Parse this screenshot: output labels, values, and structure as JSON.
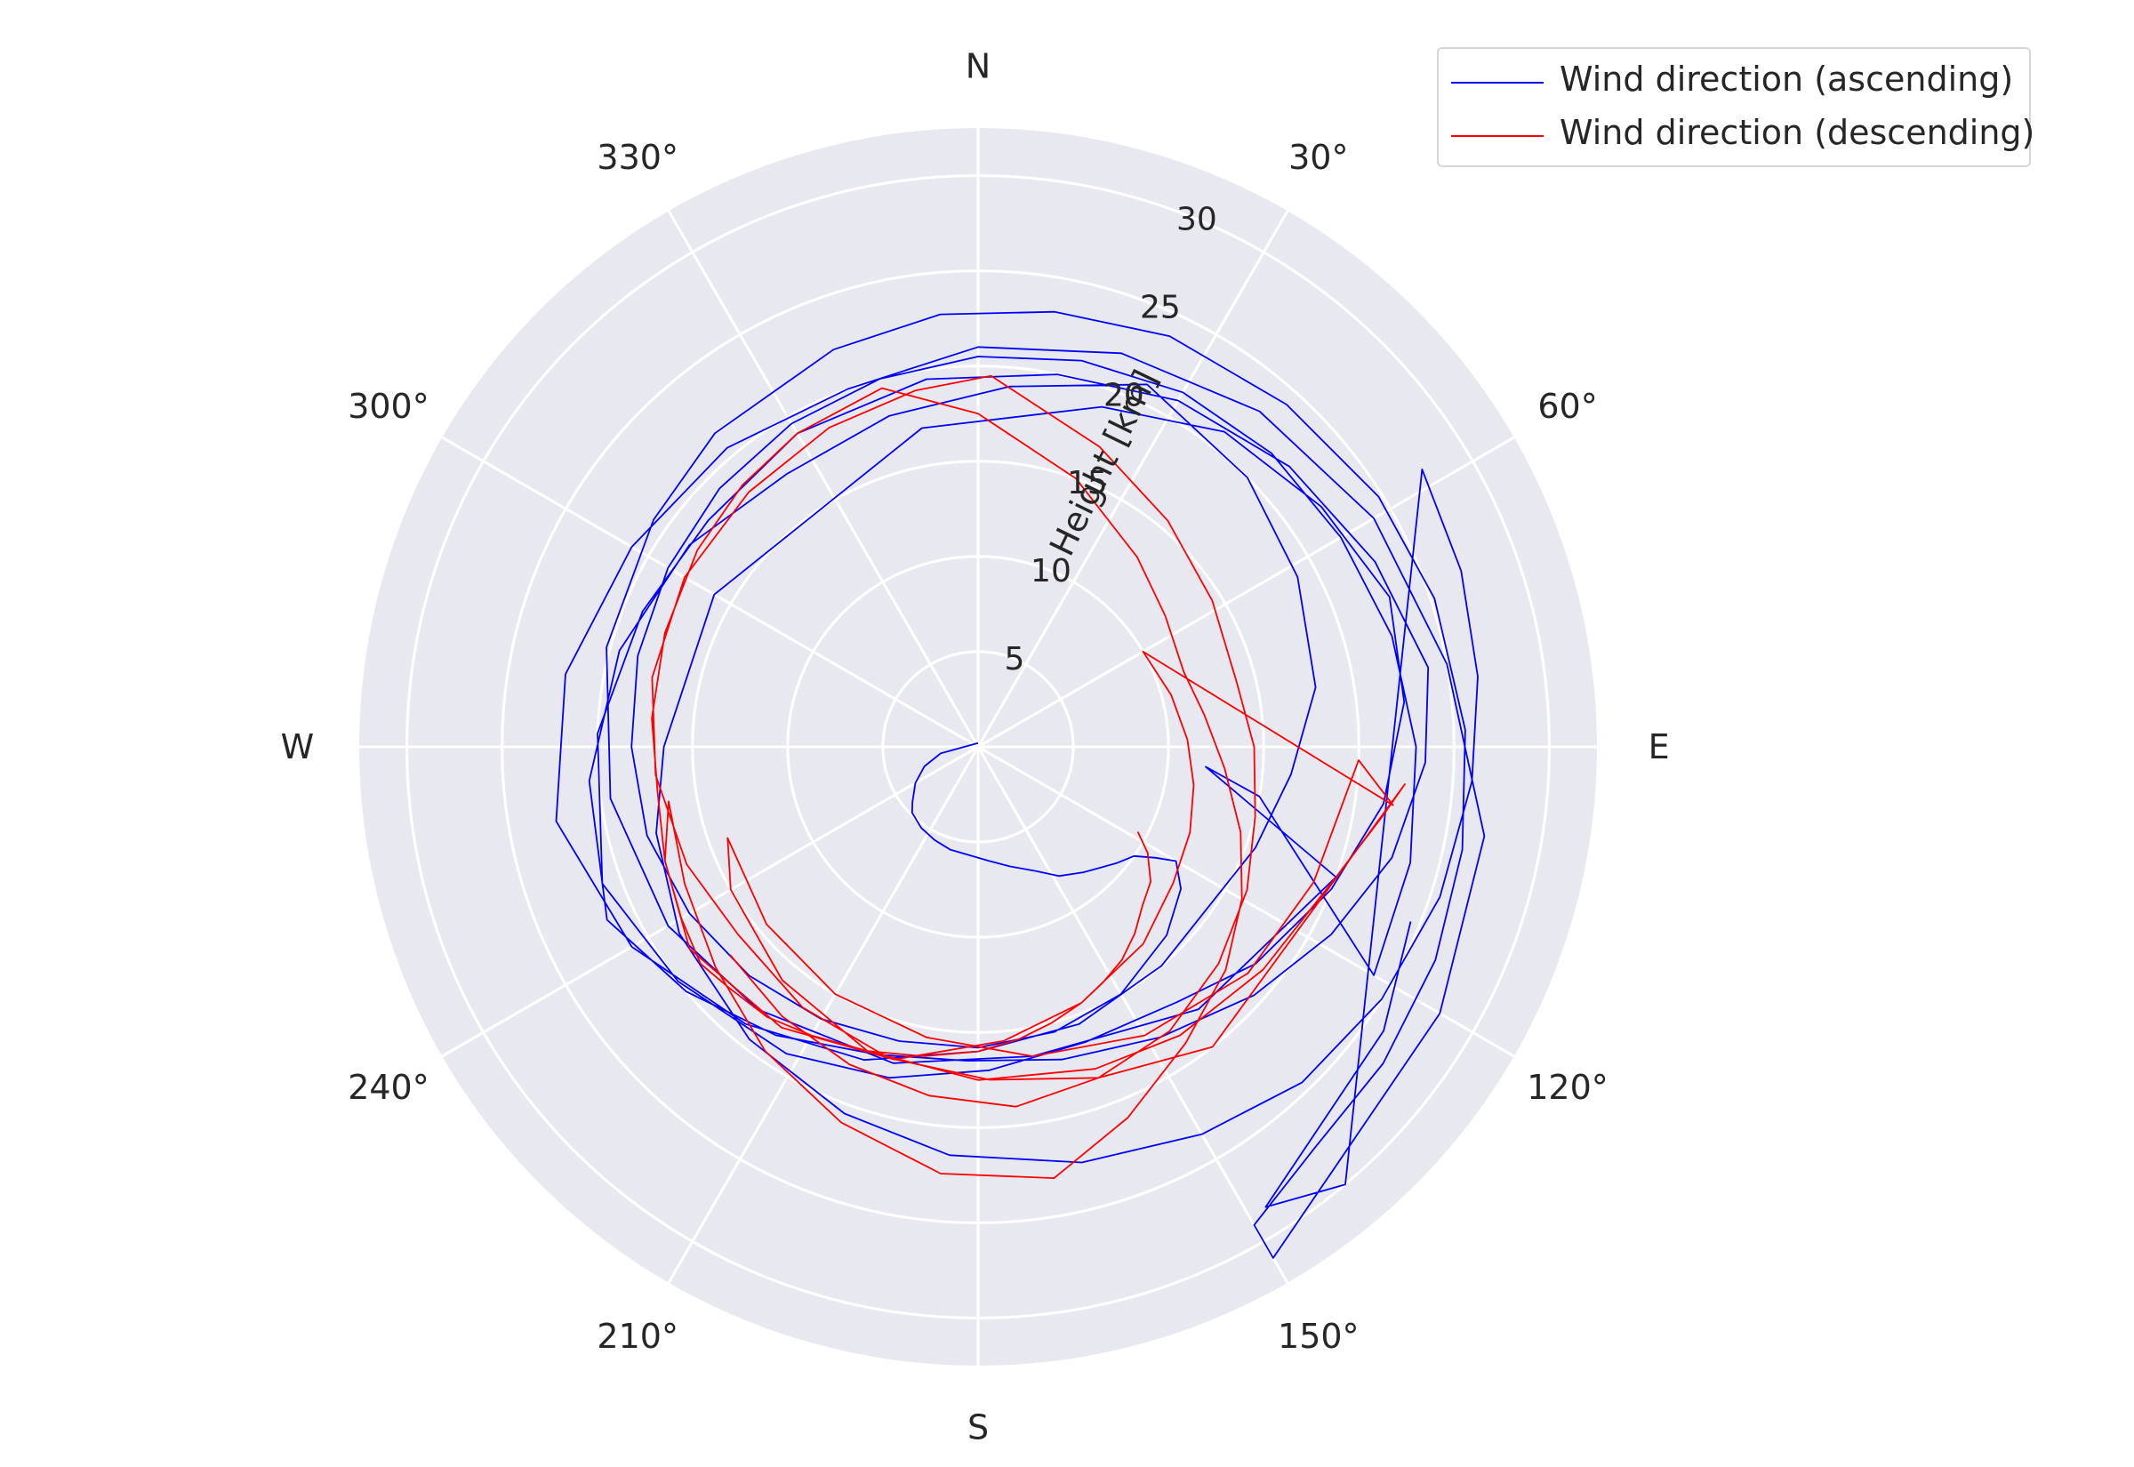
{
  "chart_data": {
    "type": "polar-line",
    "theta_zero_location": "N",
    "theta_direction": "clockwise",
    "angular_tick_labels": [
      "N",
      "30°",
      "60°",
      "E",
      "120°",
      "150°",
      "S",
      "210°",
      "240°",
      "W",
      "300°",
      "330°"
    ],
    "radial_tick_labels": [
      "5",
      "10",
      "15",
      "20",
      "25",
      "30"
    ],
    "radial_ticks": [
      5,
      10,
      15,
      20,
      25,
      30
    ],
    "rlim": [
      0,
      32.5
    ],
    "radial_label": "Height [km]",
    "grid": true,
    "legend_position": "top-right",
    "series": [
      {
        "name": "Wind direction (ascending)",
        "color": "#0000ff",
        "theta_deg": [
          0,
          260,
          250,
          240,
          230,
          225,
          215,
          205,
          195,
          185,
          175,
          165,
          155,
          148,
          140,
          135,
          130,
          125,
          122,
          120,
          125,
          135,
          150,
          165,
          180,
          195,
          210,
          225,
          240,
          255,
          270,
          285,
          300,
          315,
          330,
          345,
          0,
          15,
          30,
          45,
          60,
          75,
          90,
          105,
          120,
          100,
          95,
          110,
          140,
          170,
          195,
          220,
          240,
          262,
          285,
          305,
          320,
          340,
          355,
          10,
          25,
          42,
          58,
          72,
          88,
          102,
          115,
          128,
          140,
          150,
          150,
          120,
          100,
          80,
          60,
          40,
          20,
          0,
          340,
          320,
          300,
          280,
          260,
          240,
          220,
          200,
          180,
          160,
          140,
          110,
          95,
          80,
          62,
          45,
          25,
          5,
          345,
          325,
          305,
          285,
          265,
          245,
          230,
          215,
          198,
          182,
          165,
          148,
          132,
          118,
          105,
          92,
          80,
          65,
          48,
          30,
          12,
          352,
          330,
          310,
          292,
          272,
          250,
          232,
          212,
          195,
          178,
          160,
          142,
          128,
          112,
          98,
          84,
          70,
          55,
          38,
          20,
          350,
          300,
          270,
          255,
          238,
          218,
          200,
          184,
          166,
          150,
          136,
          122,
          108,
          94,
          82,
          70,
          58,
          140,
          148,
          125,
          112,
          100
        ],
        "height_km": [
          0.2,
          2.0,
          3.0,
          3.8,
          4.5,
          4.9,
          5.2,
          5.4,
          5.6,
          5.7,
          6.0,
          6.5,
          7.2,
          8.0,
          8.6,
          9.0,
          9.5,
          10.0,
          11.0,
          12.0,
          13.0,
          14.0,
          15.0,
          15.5,
          15.8,
          16.0,
          16.5,
          17.0,
          17.5,
          18.0,
          18.2,
          18.5,
          18.8,
          19.2,
          19.6,
          20.0,
          20.5,
          21.0,
          21.5,
          21.8,
          22.0,
          22.5,
          23.0,
          23.5,
          24.0,
          15.0,
          12.0,
          20.0,
          18.0,
          16.5,
          17.2,
          18.0,
          18.8,
          19.5,
          20.2,
          20.8,
          21.5,
          22.2,
          22.8,
          23.2,
          23.8,
          24.2,
          24.8,
          25.2,
          25.6,
          26.0,
          26.5,
          27.0,
          27.5,
          29.0,
          31.0,
          28.0,
          27.0,
          25.0,
          24.0,
          23.0,
          22.0,
          21.0,
          20.0,
          20.5,
          21.0,
          22.0,
          22.5,
          21.0,
          19.0,
          17.5,
          16.0,
          15.5,
          15.0,
          15.5,
          16.5,
          18.0,
          19.0,
          20.0,
          21.0,
          19.0,
          18.0,
          17.5,
          18.5,
          19.5,
          20.5,
          21.5,
          20.0,
          18.5,
          17.0,
          16.5,
          17.0,
          18.0,
          19.5,
          21.0,
          22.5,
          23.5,
          24.0,
          23.0,
          22.0,
          21.0,
          20.0,
          19.5,
          19.0,
          18.5,
          19.0,
          20.0,
          21.0,
          20.0,
          19.0,
          18.0,
          17.0,
          16.5,
          17.0,
          18.5,
          20.0,
          21.5,
          22.5,
          23.0,
          22.0,
          21.0,
          19.0,
          17.0,
          16.0,
          16.5,
          17.5,
          18.5,
          19.5,
          20.5,
          21.5,
          22.5,
          23.5,
          24.5,
          25.0,
          25.5,
          26.0,
          26.5,
          27.0,
          27.5,
          30.0,
          28.5,
          26.0,
          24.5
        ]
      },
      {
        "name": "Wind direction (descending)",
        "color": "#ff0000",
        "theta_deg": [
          118,
          122,
          128,
          134,
          140,
          146,
          152,
          158,
          165,
          172,
          180,
          190,
          200,
          210,
          218,
          226,
          232,
          240,
          250,
          262,
          275,
          290,
          305,
          318,
          330,
          345,
          0,
          20,
          40,
          55,
          70,
          82,
          95,
          108,
          120,
          132,
          145,
          158,
          170,
          185,
          200,
          215,
          230,
          245,
          260,
          250,
          235,
          215,
          195,
          175,
          158,
          140,
          125,
          112,
          100,
          88,
          75,
          60,
          98,
          92,
          112,
          130,
          150,
          170,
          190,
          210,
          230,
          250,
          240,
          220,
          200,
          180,
          160,
          145,
          128,
          110,
          100,
          95,
          142,
          160,
          178,
          196,
          214,
          232,
          248,
          265,
          282,
          300,
          318,
          335,
          350,
          2,
          22,
          40,
          58,
          76,
          90,
          104,
          118,
          132,
          146,
          160,
          174,
          188,
          202,
          216,
          230
        ],
        "height_km": [
          9.5,
          10.5,
          11.5,
          12.0,
          12.8,
          13.5,
          14.0,
          14.5,
          15.0,
          15.5,
          16.0,
          16.5,
          17.0,
          17.5,
          18.0,
          18.2,
          18.5,
          18.0,
          17.5,
          17.0,
          17.2,
          17.5,
          18.0,
          18.5,
          19.0,
          19.5,
          17.5,
          15.0,
          13.0,
          12.0,
          11.5,
          12.0,
          13.0,
          14.5,
          16.0,
          17.5,
          19.0,
          21.0,
          23.0,
          22.5,
          21.0,
          19.5,
          18.0,
          17.0,
          16.5,
          17.5,
          18.5,
          18.0,
          17.0,
          15.5,
          14.5,
          13.5,
          12.5,
          12.0,
          11.5,
          11.0,
          10.5,
          10.0,
          22.0,
          20.0,
          19.0,
          18.5,
          17.5,
          16.5,
          15.5,
          15.0,
          14.5,
          14.0,
          15.0,
          16.0,
          17.0,
          17.5,
          18.0,
          18.5,
          19.0,
          20.0,
          21.5,
          22.5,
          20.0,
          18.5,
          17.5,
          17.0,
          16.5,
          16.0,
          16.5,
          17.0,
          17.5,
          17.8,
          18.0,
          18.5,
          19.0,
          19.5,
          17.0,
          15.5,
          14.5,
          14.0,
          14.5,
          15.0,
          16.0,
          17.0,
          18.0,
          18.5,
          19.0,
          18.5,
          18.0,
          17.5,
          17.0
        ]
      }
    ]
  },
  "legend": {
    "items": [
      {
        "label": "Wind direction (ascending)",
        "color": "#0000ff"
      },
      {
        "label": "Wind direction (descending)",
        "color": "#ff0000"
      }
    ]
  },
  "style": {
    "plot_background": "#e8e8f0",
    "grid_color": "#ffffff"
  }
}
